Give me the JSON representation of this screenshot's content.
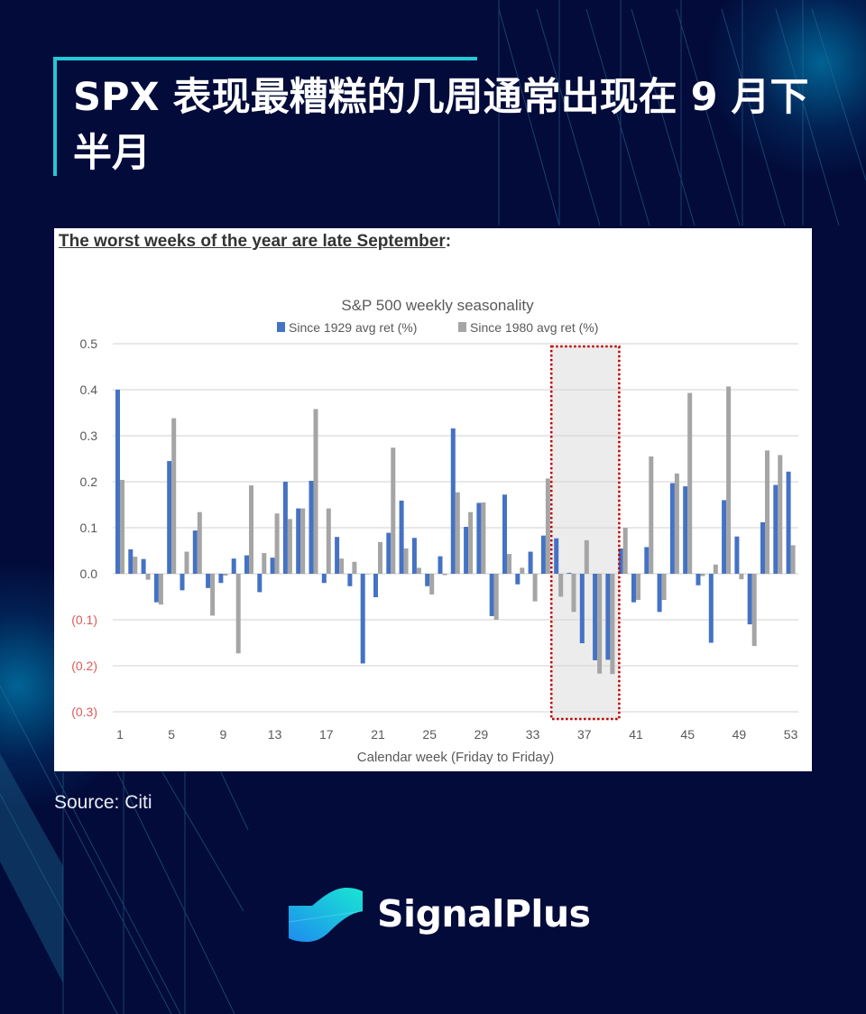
{
  "header": {
    "title": "SPX 表现最糟糕的几周通常出现在 9 月下半月"
  },
  "chart_card": {
    "heading": "The worst weeks of the year are late September",
    "heading_suffix": ":"
  },
  "source": "Source: Citi",
  "brand": {
    "name": "SignalPlus"
  },
  "colors": {
    "background": "#020b3a",
    "accent": "#23c9d6",
    "series_1929": "#4472c4",
    "series_1980": "#a5a5a5",
    "negative_tick": "#e05a5a",
    "highlight_border": "#c00000",
    "highlight_fill": "#ececec"
  },
  "chart_data": {
    "type": "bar",
    "title": "S&P 500 weekly seasonality",
    "xlabel": "Calendar week (Friday to Friday)",
    "ylabel": "",
    "ylim": [
      -0.3,
      0.5
    ],
    "yticks": [
      0.5,
      0.4,
      0.3,
      0.2,
      0.1,
      0.0,
      -0.1,
      -0.2,
      -0.3
    ],
    "ytick_labels": [
      "0.5",
      "0.4",
      "0.3",
      "0.2",
      "0.1",
      "0.0",
      "(0.1)",
      "(0.2)",
      "(0.3)"
    ],
    "xtick_labels": [
      "1",
      "5",
      "9",
      "13",
      "17",
      "21",
      "25",
      "29",
      "33",
      "37",
      "41",
      "45",
      "49",
      "53"
    ],
    "grid": true,
    "legend_position": "top",
    "highlight": {
      "from_week": 35,
      "to_week": 39,
      "style": "red dotted box, gray fill"
    },
    "categories": [
      1,
      2,
      3,
      4,
      5,
      6,
      7,
      8,
      9,
      10,
      11,
      12,
      13,
      14,
      15,
      16,
      17,
      18,
      19,
      20,
      21,
      22,
      23,
      24,
      25,
      26,
      27,
      28,
      29,
      30,
      31,
      32,
      33,
      34,
      35,
      36,
      37,
      38,
      39,
      40,
      41,
      42,
      43,
      44,
      45,
      46,
      47,
      48,
      49,
      50,
      51,
      52,
      53
    ],
    "series": [
      {
        "name": "Since 1929 avg ret (%)",
        "color": "#4472c4",
        "values": [
          0.4,
          0.053,
          0.032,
          -0.062,
          0.245,
          -0.036,
          0.094,
          -0.031,
          -0.02,
          0.033,
          0.04,
          -0.04,
          0.035,
          0.2,
          0.142,
          0.202,
          -0.02,
          0.08,
          -0.027,
          -0.195,
          -0.051,
          0.089,
          0.159,
          0.078,
          -0.027,
          0.038,
          0.316,
          0.102,
          0.154,
          -0.092,
          0.172,
          -0.023,
          0.048,
          0.083,
          0.077,
          0.002,
          -0.151,
          -0.188,
          -0.187,
          0.055,
          -0.062,
          0.058,
          -0.083,
          0.197,
          0.19,
          -0.025,
          -0.15,
          0.16,
          0.081,
          -0.11,
          0.112,
          0.193,
          0.222
        ]
      },
      {
        "name": "Since 1980 avg ret (%)",
        "color": "#a5a5a5",
        "values": [
          0.204,
          0.037,
          -0.013,
          -0.067,
          0.338,
          0.048,
          0.134,
          -0.091,
          -0.004,
          -0.173,
          0.192,
          0.045,
          0.131,
          0.119,
          0.142,
          0.358,
          0.142,
          0.033,
          0.026,
          0.0,
          0.069,
          0.274,
          0.055,
          0.013,
          -0.045,
          -0.003,
          0.177,
          0.134,
          0.155,
          -0.1,
          0.043,
          0.013,
          -0.06,
          0.207,
          -0.05,
          -0.083,
          0.073,
          -0.217,
          -0.218,
          0.1,
          -0.057,
          0.255,
          -0.057,
          0.218,
          0.393,
          -0.005,
          0.02,
          0.407,
          -0.012,
          -0.157,
          0.268,
          0.258,
          0.062
        ]
      }
    ]
  }
}
